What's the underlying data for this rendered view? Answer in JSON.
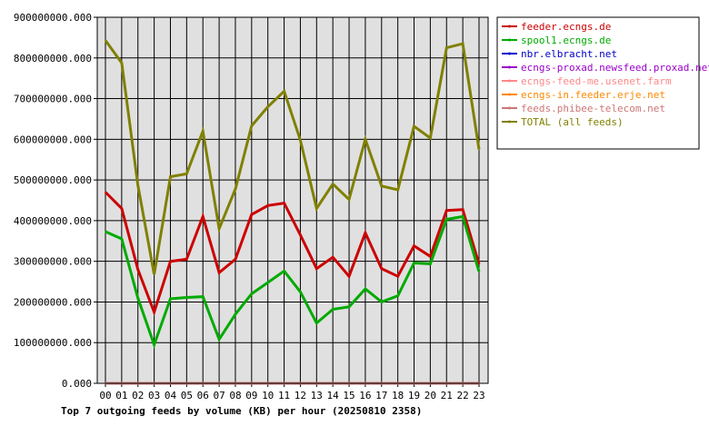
{
  "chart_data": {
    "type": "line",
    "title": "Top 7 outgoing feeds by volume (KB) per hour (20250810 2358)",
    "xlabel": "",
    "ylabel": "",
    "categories": [
      "00",
      "01",
      "02",
      "03",
      "04",
      "05",
      "06",
      "07",
      "08",
      "09",
      "10",
      "11",
      "12",
      "13",
      "14",
      "15",
      "16",
      "17",
      "18",
      "19",
      "20",
      "21",
      "22",
      "23"
    ],
    "ylim": [
      0,
      900000000
    ],
    "yticks": [
      0,
      100000000,
      200000000,
      300000000,
      400000000,
      500000000,
      600000000,
      700000000,
      800000000,
      900000000
    ],
    "ytick_labels": [
      "0.000",
      "100000000.000",
      "200000000.000",
      "300000000.000",
      "400000000.000",
      "500000000.000",
      "600000000.000",
      "700000000.000",
      "800000000.000",
      "900000000.000"
    ],
    "grid": true,
    "legend_position": "right",
    "series": [
      {
        "name": "feeder.ecngs.de",
        "color": "#cc0000",
        "values": [
          470000000,
          430000000,
          280000000,
          175000000,
          300000000,
          305000000,
          410000000,
          272000000,
          305000000,
          415000000,
          437000000,
          443000000,
          365000000,
          282000000,
          310000000,
          263000000,
          370000000,
          282000000,
          263000000,
          338000000,
          312000000,
          425000000,
          427000000,
          293000000
        ]
      },
      {
        "name": "spool1.ecngs.de",
        "color": "#00aa00",
        "values": [
          373000000,
          355000000,
          210000000,
          95000000,
          208000000,
          211000000,
          213000000,
          108000000,
          170000000,
          220000000,
          248000000,
          276000000,
          225000000,
          148000000,
          182000000,
          188000000,
          232000000,
          200000000,
          215000000,
          296000000,
          294000000,
          403000000,
          410000000,
          275000000
        ]
      },
      {
        "name": "nbr.elbracht.net",
        "color": "#0000cc",
        "values": [
          0,
          0,
          0,
          0,
          0,
          0,
          0,
          0,
          0,
          0,
          0,
          0,
          0,
          0,
          0,
          0,
          0,
          0,
          0,
          0,
          0,
          0,
          0,
          0
        ]
      },
      {
        "name": "ecngs-proxad.newsfeed.proxad.net",
        "color": "#9900cc",
        "values": [
          0,
          0,
          0,
          0,
          0,
          0,
          0,
          0,
          0,
          0,
          0,
          0,
          0,
          0,
          0,
          0,
          0,
          0,
          0,
          0,
          0,
          0,
          0,
          0
        ]
      },
      {
        "name": "ecngs-feed-me.usenet.farm",
        "color": "#ff8888",
        "values": [
          0,
          0,
          0,
          0,
          0,
          0,
          0,
          0,
          0,
          0,
          0,
          0,
          0,
          0,
          0,
          0,
          0,
          0,
          0,
          0,
          0,
          0,
          0,
          0
        ]
      },
      {
        "name": "ecngs-in.feeder.erje.net",
        "color": "#ff8800",
        "values": [
          0,
          0,
          0,
          0,
          0,
          0,
          0,
          0,
          0,
          0,
          0,
          0,
          0,
          0,
          0,
          0,
          0,
          0,
          0,
          0,
          0,
          0,
          0,
          0
        ]
      },
      {
        "name": "feeds.phibee-telecom.net",
        "color": "#cc7777",
        "values": [
          0,
          0,
          0,
          0,
          0,
          0,
          0,
          0,
          0,
          0,
          0,
          0,
          0,
          0,
          0,
          0,
          0,
          0,
          0,
          0,
          0,
          0,
          0,
          0
        ]
      },
      {
        "name": "TOTAL (all feeds)",
        "color": "#808000",
        "values": [
          843000000,
          788000000,
          487000000,
          268000000,
          508000000,
          515000000,
          620000000,
          380000000,
          478000000,
          633000000,
          680000000,
          718000000,
          598000000,
          430000000,
          490000000,
          452000000,
          600000000,
          485000000,
          476000000,
          632000000,
          603000000,
          825000000,
          835000000,
          575000000
        ]
      }
    ]
  }
}
